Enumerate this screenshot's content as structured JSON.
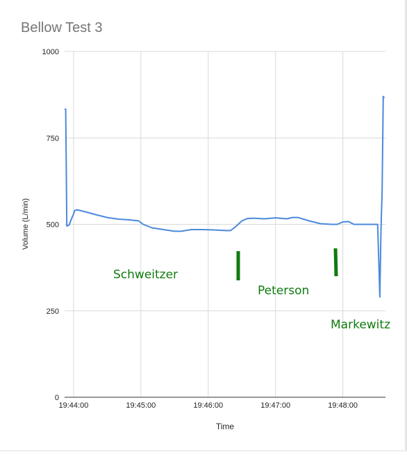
{
  "chart_data": {
    "type": "line",
    "title": "Bellow Test 3",
    "xlabel": "Time",
    "ylabel": "Volume (L/min)",
    "ylim": [
      0,
      1000
    ],
    "xlim": [
      "19:43:52",
      "19:48:38"
    ],
    "yticks": [
      0,
      250,
      500,
      750,
      1000
    ],
    "xticks": [
      "19:44:00",
      "19:45:00",
      "19:46:00",
      "19:47:00",
      "19:48:00"
    ],
    "grid": true,
    "series": [
      {
        "x": [
          "19:43:52",
          "19:43:53",
          "19:43:54",
          "19:43:56",
          "19:43:58",
          "19:44:00",
          "19:44:01",
          "19:44:03",
          "19:44:06",
          "19:44:12",
          "19:44:20",
          "19:44:30",
          "19:44:40",
          "19:44:50",
          "19:44:58",
          "19:45:02",
          "19:45:10",
          "19:45:20",
          "19:45:30",
          "19:45:36",
          "19:45:45",
          "19:45:55",
          "19:46:05",
          "19:46:15",
          "19:46:20",
          "19:46:25",
          "19:46:30",
          "19:46:35",
          "19:46:40",
          "19:46:50",
          "19:47:00",
          "19:47:10",
          "19:47:15",
          "19:47:20",
          "19:47:30",
          "19:47:40",
          "19:47:50",
          "19:47:55",
          "19:48:00",
          "19:48:05",
          "19:48:10",
          "19:48:20",
          "19:48:25",
          "19:48:29",
          "19:48:31",
          "19:48:32",
          "19:48:33",
          "19:48:34",
          "19:48:35",
          "19:48:36",
          "19:48:37"
        ],
        "y": [
          833,
          833,
          495,
          498,
          515,
          530,
          540,
          542,
          540,
          535,
          528,
          520,
          515,
          513,
          510,
          500,
          490,
          485,
          480,
          480,
          485,
          485,
          484,
          482,
          482,
          495,
          510,
          517,
          518,
          516,
          519,
          516,
          520,
          520,
          510,
          502,
          500,
          500,
          507,
          508,
          500,
          500,
          500,
          500,
          500,
          400,
          290,
          480,
          600,
          870,
          866
        ],
        "color": "#4a89dc"
      }
    ],
    "annotations": [
      {
        "label": "Schweitzer"
      },
      {
        "label": "Peterson"
      },
      {
        "label": "Markewitz"
      }
    ],
    "annotation_color": "#0f7b0f"
  }
}
